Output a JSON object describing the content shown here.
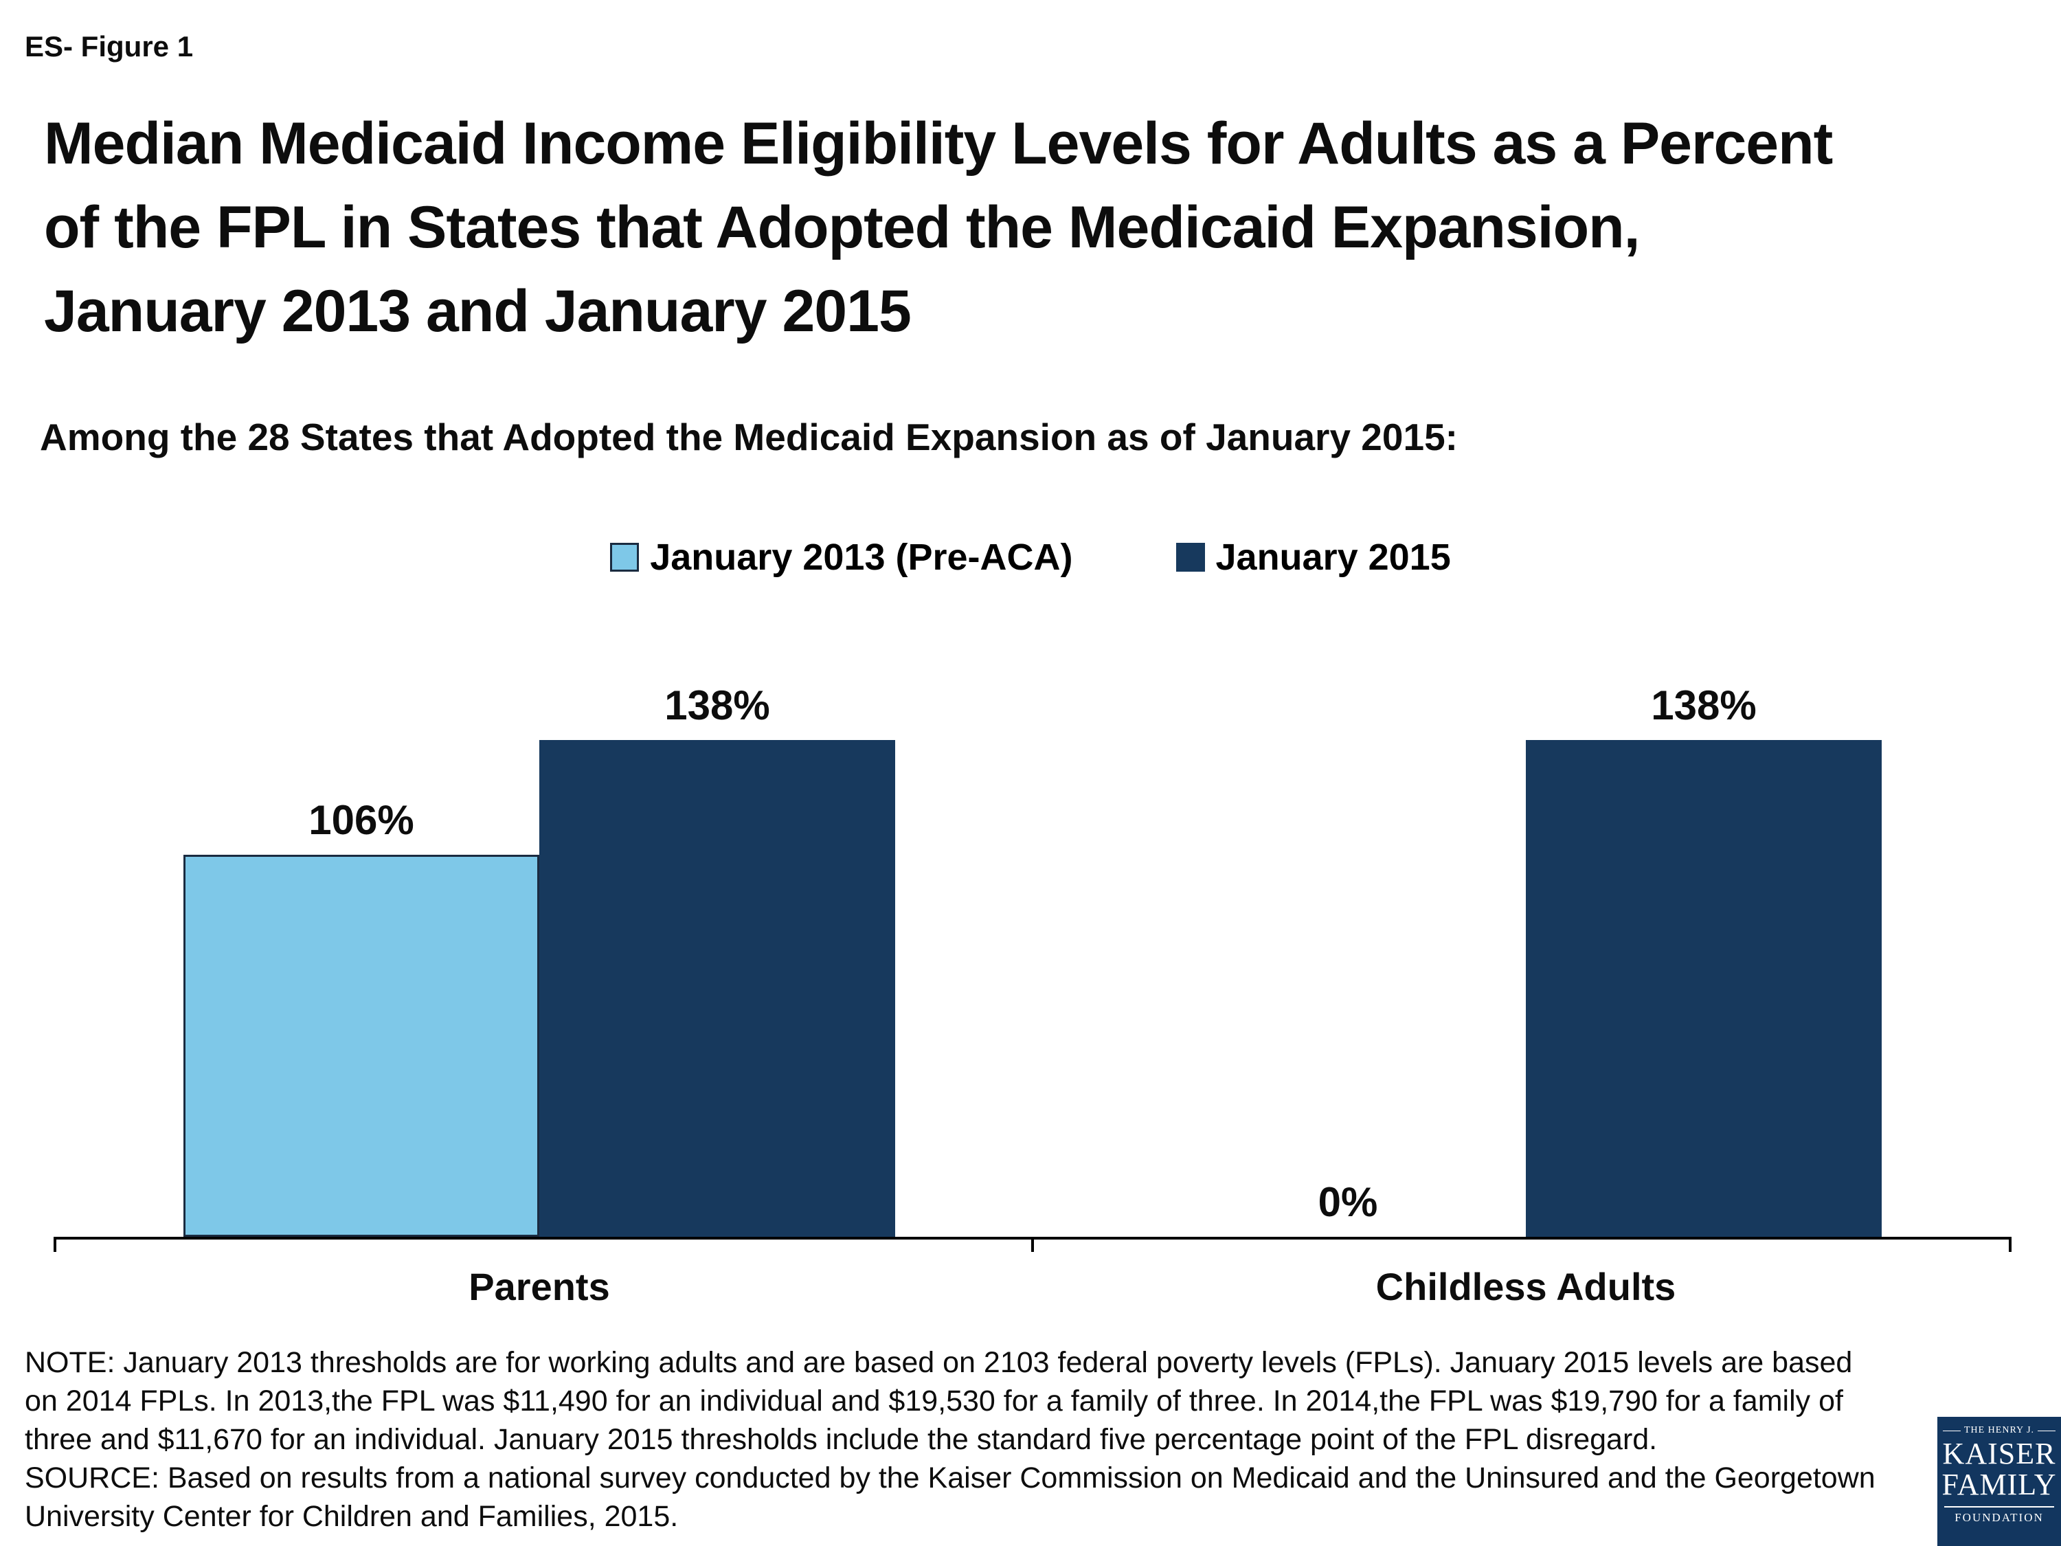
{
  "header": {
    "figure_label": "ES- Figure 1",
    "title": "Median Medicaid Income Eligibility Levels for Adults as a Percent of the FPL in States that Adopted the Medicaid Expansion, January 2013 and January 2015",
    "subtitle": "Among the 28 States that Adopted the Medicaid Expansion as of January 2015:"
  },
  "chart_data": {
    "type": "bar",
    "categories": [
      "Parents",
      "Childless Adults"
    ],
    "series": [
      {
        "name": "January 2013 (Pre-ACA)",
        "values": [
          106,
          0
        ],
        "color": "#7EC8E8"
      },
      {
        "name": "January 2015",
        "values": [
          138,
          138
        ],
        "color": "#17395D"
      }
    ],
    "value_suffix": "%",
    "ylim": [
      0,
      145
    ],
    "grid": false,
    "legend_position": "top-center",
    "title": "Median Medicaid Income Eligibility Levels for Adults as a Percent of the FPL in States that Adopted the Medicaid Expansion, January 2013 and January 2015",
    "xlabel": "",
    "ylabel": ""
  },
  "colors": {
    "light_blue": "#7EC8E8",
    "navy": "#17395D",
    "logo_bg": "#12365F",
    "axis": "#000000"
  },
  "footer": {
    "note": "NOTE: January 2013 thresholds are for working adults and are based on 2103 federal poverty levels (FPLs). January 2015 levels are based on 2014 FPLs. In 2013,the FPL was $11,490 for an individual and $19,530 for a family of three. In 2014,the FPL was $19,790 for a family of three and $11,670 for an individual. January 2015 thresholds include the standard five percentage point of the FPL disregard.",
    "source": "SOURCE: Based on results from a national survey conducted by the Kaiser Commission on Medicaid and the Uninsured and the Georgetown University Center for Children and Families, 2015."
  },
  "logo": {
    "line1": "THE HENRY J.",
    "line2": "KAISER",
    "line3": "FAMILY",
    "line4": "FOUNDATION"
  }
}
